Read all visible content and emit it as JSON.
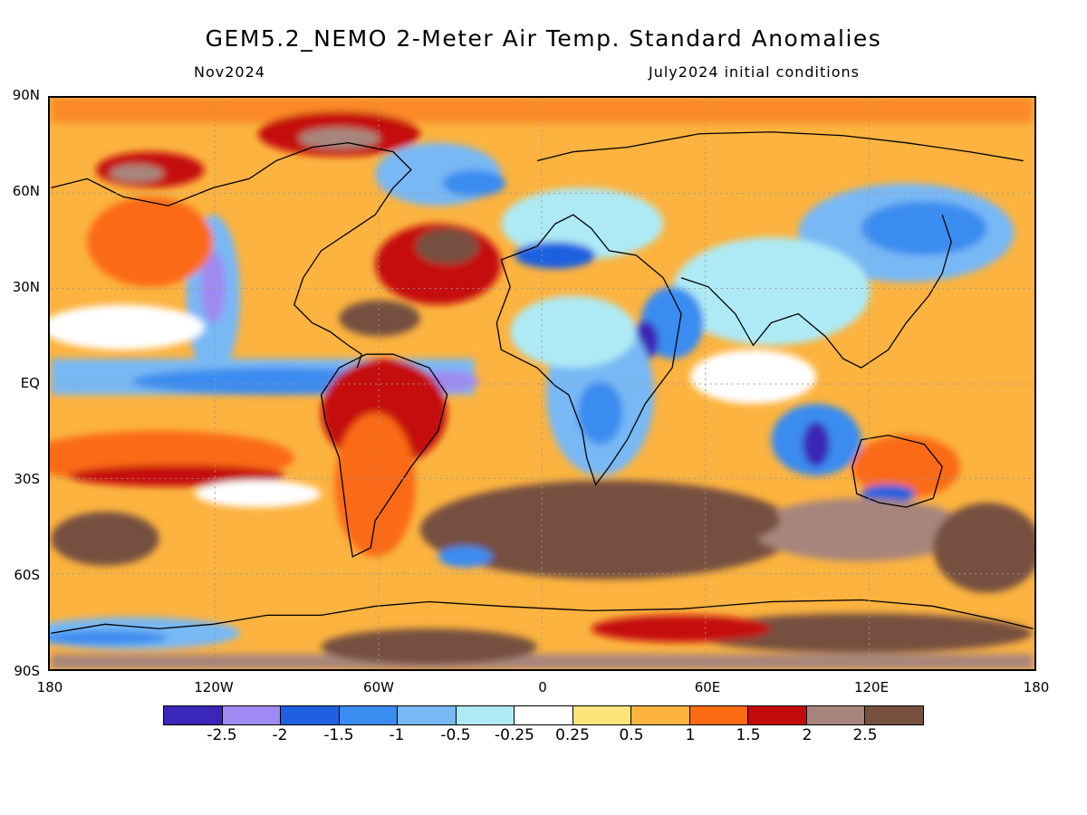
{
  "header": {
    "title": "GEM5.2_NEMO 2-Meter Air Temp. Standard Anomalies",
    "valid_month": "Nov2024",
    "initial_conditions": "July2024 initial conditions"
  },
  "axes": {
    "lat_labels": [
      "90N",
      "60N",
      "30N",
      "EQ",
      "30S",
      "60S",
      "90S"
    ],
    "lon_labels": [
      "180",
      "120W",
      "60W",
      "0",
      "60E",
      "120E",
      "180"
    ]
  },
  "legend": {
    "colors": [
      "#3a26b8",
      "#9e8af2",
      "#1f60e0",
      "#3a8cf0",
      "#78b8f5",
      "#aeeaf5",
      "#ffffff",
      "#fde47a",
      "#fcb33f",
      "#fb6b12",
      "#c50a0a",
      "#a8857c",
      "#76503f"
    ],
    "tick_labels": [
      "-2.5",
      "-2",
      "-1.5",
      "-1",
      "-0.5",
      "-0.25",
      "0.25",
      "0.5",
      "1",
      "1.5",
      "2",
      "2.5"
    ]
  },
  "map": {
    "projection": "cylindrical equidistant",
    "background_anomaly_color": "#fcb33f",
    "coastline_color": "#000000"
  }
}
